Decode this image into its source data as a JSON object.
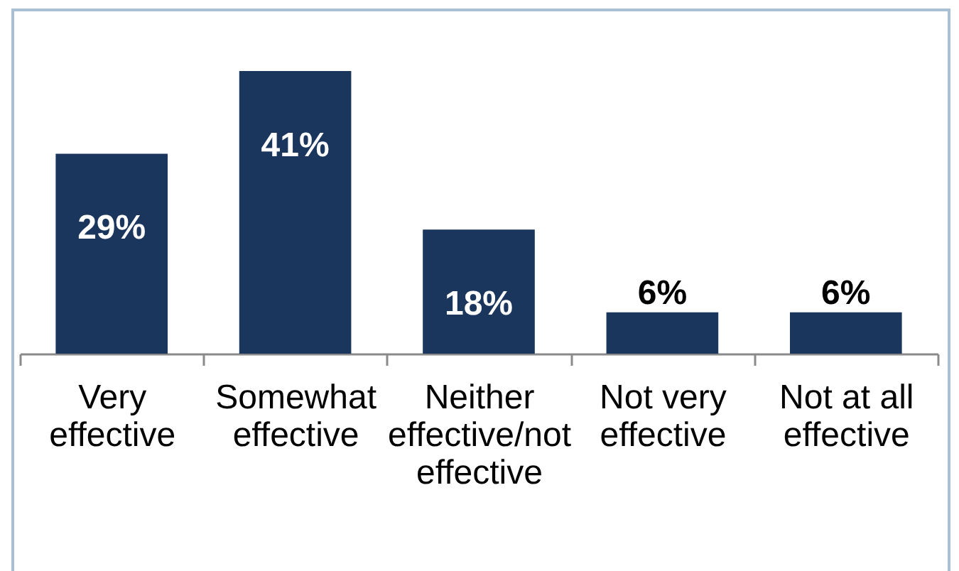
{
  "chart_data": {
    "type": "bar",
    "categories": [
      "Very effective",
      "Somewhat effective",
      "Neither effective/not effective",
      "Not very effective",
      "Not at all effective"
    ],
    "values": [
      29,
      41,
      18,
      6,
      6
    ],
    "value_labels": [
      "29%",
      "41%",
      "18%",
      "6%",
      "6%"
    ],
    "color": "#1b365d",
    "tick_labels": "x"
  }
}
